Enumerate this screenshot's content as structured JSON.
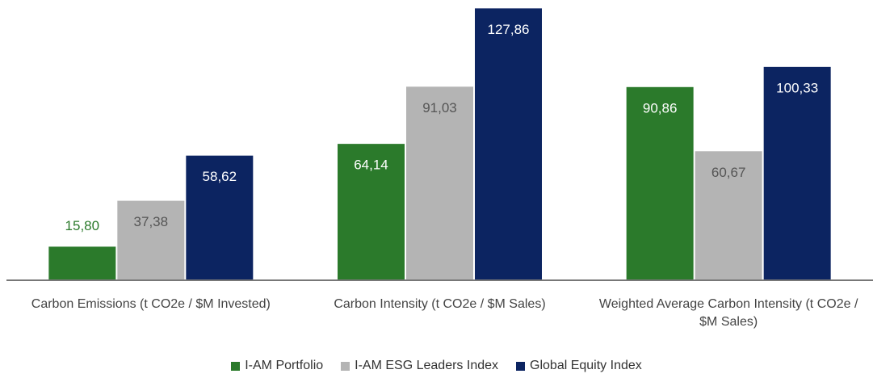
{
  "chart_data": {
    "type": "bar",
    "categories": [
      "Carbon Emissions (t CO2e / $M Invested)",
      "Carbon Intensity (t CO2e / $M Sales)",
      "Weighted Average Carbon Intensity (t CO2e / $M Sales)"
    ],
    "series": [
      {
        "name": "I-AM Portfolio",
        "color": "#2b7a2b",
        "values": [
          15.8,
          64.14,
          90.86
        ],
        "value_labels": [
          "15,80",
          "64,14",
          "90,86"
        ]
      },
      {
        "name": "I-AM ESG Leaders Index",
        "color": "#b4b4b4",
        "values": [
          37.38,
          91.03,
          60.67
        ],
        "value_labels": [
          "37,38",
          "91,03",
          "60,67"
        ]
      },
      {
        "name": "Global Equity Index",
        "color": "#0c2461",
        "values": [
          58.62,
          127.86,
          100.33
        ],
        "value_labels": [
          "58,62",
          "127,86",
          "100,33"
        ]
      }
    ],
    "ylim": [
      0,
      128
    ]
  }
}
